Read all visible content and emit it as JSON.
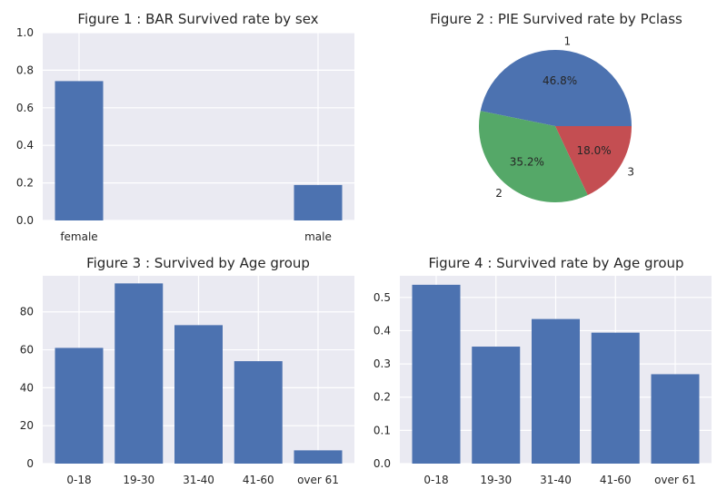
{
  "colors": {
    "axes_bg": "#eaeaf2",
    "grid": "#ffffff",
    "bar": "#4c72b0",
    "pie": [
      "#4c72b0",
      "#55a868",
      "#c44e52"
    ]
  },
  "chart_data": [
    {
      "type": "bar",
      "title": "Figure 1 : BAR Survived rate by sex",
      "categories": [
        "female",
        "male"
      ],
      "values": [
        0.742,
        0.189
      ],
      "ylim": [
        0,
        1.0
      ],
      "yticks": [
        0.0,
        0.2,
        0.4,
        0.6,
        0.8,
        1.0
      ],
      "ytick_labels": [
        "0.0",
        "0.2",
        "0.4",
        "0.6",
        "0.8",
        "1.0"
      ],
      "grid": true
    },
    {
      "type": "pie",
      "title": "Figure 2 : PIE Survived rate by Pclass",
      "labels": [
        "1",
        "2",
        "3"
      ],
      "values": [
        46.8,
        35.2,
        18.0
      ],
      "value_labels": [
        "46.8%",
        "35.2%",
        "18.0%"
      ]
    },
    {
      "type": "bar",
      "title": "Figure 3 : Survived by Age group",
      "categories": [
        "0-18",
        "19-30",
        "31-40",
        "41-60",
        "over 61"
      ],
      "values": [
        61,
        95,
        73,
        54,
        7
      ],
      "ylim": [
        0,
        99
      ],
      "yticks": [
        0,
        20,
        40,
        60,
        80
      ],
      "ytick_labels": [
        "0",
        "20",
        "40",
        "60",
        "80"
      ],
      "grid": true
    },
    {
      "type": "bar",
      "title": "Figure 4 : Survived rate by Age group",
      "categories": [
        "0-18",
        "19-30",
        "31-40",
        "41-60",
        "over 61"
      ],
      "values": [
        0.538,
        0.352,
        0.435,
        0.394,
        0.269
      ],
      "ylim": [
        0,
        0.565
      ],
      "yticks": [
        0.0,
        0.1,
        0.2,
        0.3,
        0.4,
        0.5
      ],
      "ytick_labels": [
        "0.0",
        "0.1",
        "0.2",
        "0.3",
        "0.4",
        "0.5"
      ],
      "grid": true
    }
  ]
}
